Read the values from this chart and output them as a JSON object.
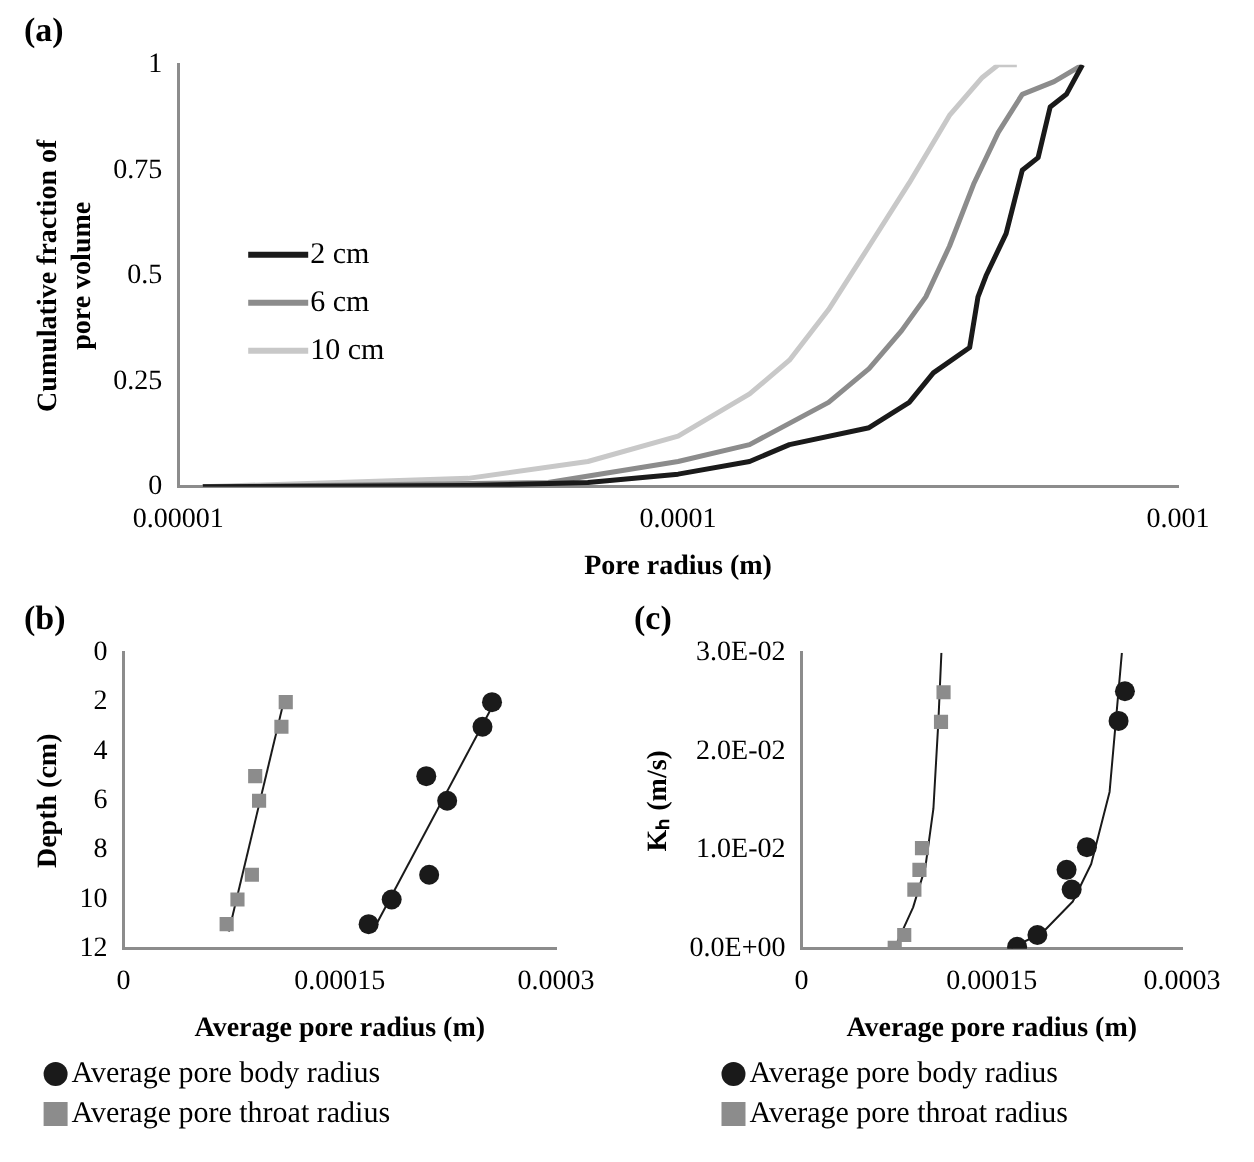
{
  "chart_data": [
    {
      "type": "line",
      "title": "(a)",
      "xlabel": "Pore radius (m)",
      "ylabel": "Cumulative fraction of pore volume",
      "log": "x",
      "xlim": [
        1e-05,
        0.001
      ],
      "xticks": [
        {
          "value": 1e-05,
          "label": "0.00001"
        },
        0.0001,
        0.001
      ],
      "ylim": [
        0,
        1
      ],
      "yticks": [
        0,
        0.25,
        0.5,
        0.75,
        1
      ],
      "grid": false,
      "legend": "left",
      "series": [
        {
          "name": "2 cm",
          "color": "#1a1a1a",
          "x": [
            1.12e-05,
            3.8e-05,
            6.6e-05,
            0.0001,
            0.000139,
            0.000167,
            0.000241,
            0.00029,
            0.000324,
            0.000383,
            0.000398,
            0.000413,
            0.000453,
            0.000488,
            0.000525,
            0.000555,
            0.000598,
            0.000644
          ],
          "values": [
            0,
            0.003,
            0.01,
            0.03,
            0.06,
            0.1,
            0.14,
            0.2,
            0.27,
            0.33,
            0.45,
            0.5,
            0.6,
            0.75,
            0.78,
            0.9,
            0.93,
            1
          ]
        },
        {
          "name": "6 cm",
          "color": "#8c8c8c",
          "x": [
            1.12e-05,
            5.5e-05,
            0.0001,
            0.000139,
            0.0002,
            0.000241,
            0.00028,
            0.000313,
            0.000349,
            0.000391,
            0.000437,
            0.000488,
            0.000565,
            0.000644
          ],
          "values": [
            0,
            0.01,
            0.06,
            0.1,
            0.2,
            0.28,
            0.37,
            0.45,
            0.57,
            0.72,
            0.84,
            0.93,
            0.96,
            1
          ]
        },
        {
          "name": "10 cm",
          "color": "#c8c8c8",
          "x": [
            1.12e-05,
            3.8e-05,
            6.6e-05,
            0.0001,
            0.000139,
            0.000167,
            0.0002,
            0.000241,
            0.00029,
            0.000349,
            0.000406,
            0.000437,
            0.000476
          ],
          "values": [
            0,
            0.02,
            0.06,
            0.12,
            0.22,
            0.3,
            0.42,
            0.57,
            0.72,
            0.88,
            0.97,
            1,
            1
          ]
        }
      ]
    },
    {
      "type": "scatter",
      "title": "(b)",
      "xlabel": "Average pore radius (m)",
      "ylabel": "Depth (cm)",
      "xlim": [
        0,
        0.0003
      ],
      "xticks": [
        0,
        0.00015,
        0.0003
      ],
      "ylim": [
        12,
        0
      ],
      "yticks": [
        0,
        2,
        4,
        6,
        8,
        10,
        12
      ],
      "grid": false,
      "legend": "bottom",
      "series": [
        {
          "name": "Average pore body radius",
          "color": "#1a1a1a",
          "marker": "circle",
          "x": [
            0.0002556,
            0.000249,
            0.00021,
            0.0002245,
            0.000212,
            0.000186,
            0.00017
          ],
          "values": [
            2,
            3,
            5,
            6,
            9,
            10,
            11
          ]
        },
        {
          "name": "Average pore throat radius",
          "color": "#8c8c8c",
          "marker": "square",
          "x": [
            0.0001125,
            0.0001095,
            9.13e-05,
            9.4e-05,
            8.9e-05,
            7.9e-05,
            7.15e-05
          ],
          "values": [
            2,
            3,
            5,
            6,
            9,
            10,
            11
          ]
        },
        {
          "type": "line",
          "color": "#1a1a1a",
          "x": [
            7.3e-05,
            0.000111
          ],
          "values": [
            11.3,
            2
          ]
        },
        {
          "type": "line",
          "color": "#1a1a1a",
          "x": [
            0.0001727,
            0.0002556
          ],
          "values": [
            11.3,
            2.2
          ]
        }
      ]
    },
    {
      "type": "scatter",
      "title": "(c)",
      "xlabel": "Average pore radius (m)",
      "ylabel": "Kₕ (m/s)",
      "xlim": [
        0,
        0.0003
      ],
      "xticks": [
        0,
        0.00015,
        0.0003
      ],
      "ylim": [
        0,
        0.03
      ],
      "yticks": [
        {
          "value": 0,
          "label": "0.0E+00"
        },
        {
          "value": 0.01,
          "label": "1.0E-02"
        },
        {
          "value": 0.02,
          "label": "2.0E-02"
        },
        {
          "value": 0.03,
          "label": "3.0E-02"
        }
      ],
      "grid": false,
      "legend": "bottom",
      "series": [
        {
          "name": "Average pore body radius",
          "color": "#1a1a1a",
          "marker": "circle",
          "x": [
            0.00017,
            0.000186,
            0.000213,
            0.000209,
            0.000225,
            0.00025,
            0.000255
          ],
          "values": [
            0.0002,
            0.0014,
            0.006,
            0.008,
            0.0103,
            0.0231,
            0.0261
          ]
        },
        {
          "name": "Average pore throat radius",
          "color": "#8c8c8c",
          "marker": "square",
          "x": [
            7.35e-05,
            8.1e-05,
            8.9e-05,
            9.3e-05,
            9.5e-05,
            0.00011,
            0.000112
          ],
          "values": [
            0.0001,
            0.0014,
            0.006,
            0.008,
            0.0102,
            0.023,
            0.026
          ]
        },
        {
          "type": "line",
          "color": "#1a1a1a",
          "x": [
            7.45e-05,
            8.8e-05,
            9.77e-05,
            0.000104,
            0.0001079,
            0.0001103
          ],
          "values": [
            0.0004,
            0.0042,
            0.0083,
            0.0142,
            0.023,
            0.03
          ]
        },
        {
          "type": "line",
          "color": "#1a1a1a",
          "x": [
            0.0001655,
            0.0001897,
            0.0002139,
            0.0002284,
            0.0002429,
            0.0002526
          ],
          "values": [
            0.0001,
            0.0016,
            0.0048,
            0.0086,
            0.0159,
            0.03
          ]
        }
      ]
    }
  ]
}
